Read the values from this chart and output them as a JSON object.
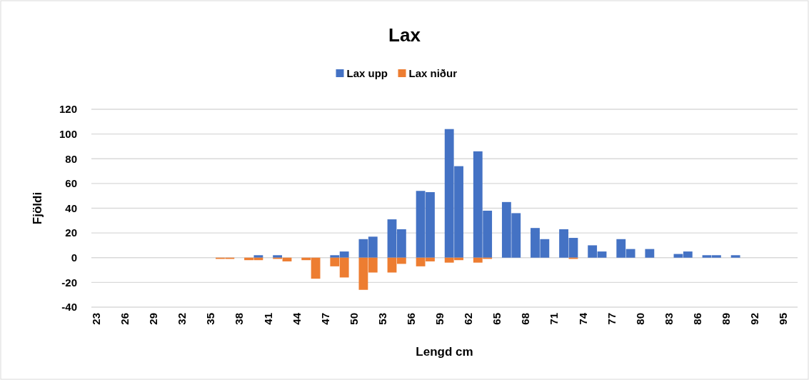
{
  "chart_data": {
    "type": "bar",
    "title": "Lax",
    "xlabel": "Lengd cm",
    "ylabel": "Fjöldi",
    "categories": [
      "23",
      null,
      null,
      "26",
      null,
      null,
      "29",
      null,
      null,
      "32",
      null,
      null,
      "35",
      null,
      null,
      "38",
      null,
      null,
      "41",
      null,
      null,
      "44",
      null,
      null,
      "47",
      null,
      null,
      "50",
      null,
      null,
      "53",
      null,
      null,
      "56",
      null,
      null,
      "59",
      null,
      null,
      "62",
      null,
      null,
      "65",
      null,
      null,
      "68",
      null,
      null,
      "71",
      null,
      null,
      "74",
      null,
      null,
      "77",
      null,
      null,
      "80",
      null,
      null,
      "83",
      null,
      null,
      "86",
      null,
      null,
      "89",
      null,
      null,
      "92",
      null,
      null,
      "95",
      null
    ],
    "series": [
      {
        "name": "Lax upp",
        "color": "#4472c4",
        "values": [
          null,
          null,
          null,
          null,
          null,
          null,
          null,
          null,
          null,
          null,
          null,
          null,
          null,
          null,
          null,
          null,
          null,
          2,
          null,
          2,
          null,
          null,
          null,
          null,
          null,
          2,
          5,
          null,
          15,
          17,
          null,
          31,
          23,
          null,
          54,
          53,
          null,
          104,
          74,
          null,
          86,
          38,
          null,
          45,
          36,
          null,
          24,
          15,
          null,
          23,
          16,
          null,
          10,
          5,
          null,
          15,
          7,
          null,
          7,
          null,
          null,
          3,
          5,
          null,
          2,
          2,
          null,
          2,
          null,
          null,
          null,
          null,
          null,
          null
        ]
      },
      {
        "name": "Lax niður",
        "color": "#ed7d31",
        "values": [
          null,
          null,
          null,
          null,
          null,
          null,
          null,
          null,
          null,
          null,
          null,
          null,
          null,
          -1,
          -1,
          null,
          -2,
          -2,
          null,
          -1,
          -3,
          null,
          -2,
          -17,
          null,
          -7,
          -16,
          null,
          -26,
          -12,
          null,
          -12,
          -5,
          null,
          -7,
          -3,
          null,
          -4,
          -2,
          null,
          -4,
          -1,
          null,
          null,
          null,
          null,
          null,
          null,
          null,
          null,
          -1,
          null,
          null,
          null,
          null,
          null,
          null,
          null,
          null,
          null,
          null,
          null,
          null,
          null,
          null,
          null,
          null,
          null,
          null,
          null,
          null,
          null,
          null,
          null
        ]
      }
    ],
    "ylim": [
      -40,
      120
    ],
    "yticks": [
      -40,
      -20,
      0,
      20,
      40,
      60,
      80,
      100,
      120
    ],
    "grid": "y",
    "legend": "top"
  }
}
